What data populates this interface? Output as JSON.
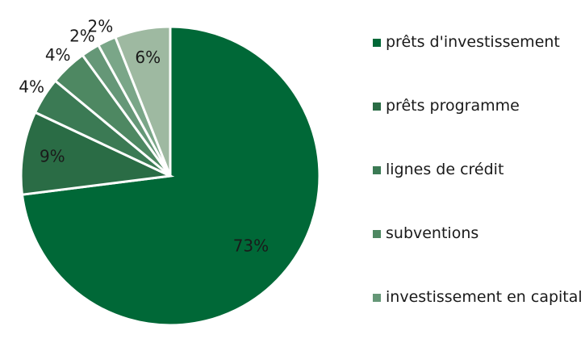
{
  "chart_data": {
    "type": "pie",
    "categories": [
      "prêts d'investissement",
      "prêts programme",
      "lignes de crédit",
      "subventions",
      "investissement en capital",
      null,
      null
    ],
    "values": [
      73,
      9,
      4,
      4,
      2,
      2,
      6
    ],
    "value_labels": [
      "73%",
      "9%",
      "4%",
      "4%",
      "2%",
      "2%",
      "6%"
    ],
    "colors": [
      "#006837",
      "#2a6c45",
      "#3b7a54",
      "#4e8862",
      "#659777",
      "#7aa688",
      "#9eb9a1"
    ]
  }
}
